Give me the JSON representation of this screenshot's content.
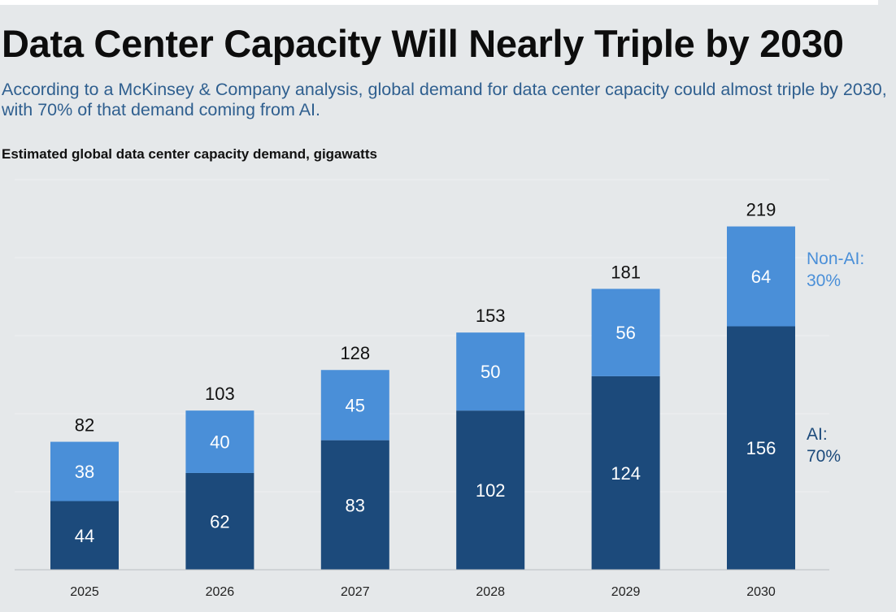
{
  "title": "Data Center Capacity Will Nearly Triple by 2030",
  "subtitle": "According to a McKinsey & Company analysis, global demand for data center capacity could almost triple by 2030, with 70% of that demand coming from AI.",
  "chart_data": {
    "type": "bar",
    "stacked": true,
    "title": "Estimated global data center capacity demand, gigawatts",
    "xlabel": "",
    "ylabel": "",
    "ylim": [
      0,
      250
    ],
    "grid": true,
    "categories": [
      "2025",
      "2026",
      "2027",
      "2028",
      "2029",
      "2030"
    ],
    "series": [
      {
        "name": "AI",
        "label": "AI:",
        "share": "70%",
        "color": "#1c4a7b",
        "values": [
          44,
          62,
          83,
          102,
          124,
          156
        ]
      },
      {
        "name": "Non-AI",
        "label": "Non-AI:",
        "share": "30%",
        "color": "#4a8fd8",
        "values": [
          38,
          40,
          45,
          50,
          56,
          64
        ]
      }
    ],
    "totals": [
      82,
      103,
      128,
      153,
      181,
      219
    ]
  }
}
